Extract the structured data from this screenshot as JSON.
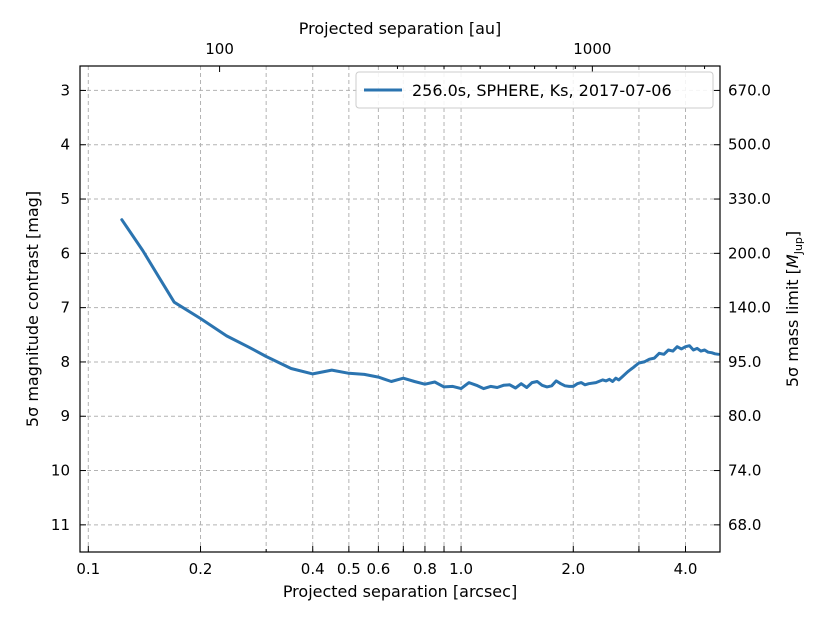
{
  "chart_data": {
    "type": "line",
    "xlabel": "Projected separation [arcsec]",
    "ylabel": "5σ magnitude contrast [mag]",
    "top_xlabel": "Projected separation [au]",
    "right_ylabel_prefix": "5σ mass limit [",
    "right_ylabel_symbol": "M",
    "right_ylabel_sub": "Jup",
    "right_ylabel_suffix": "]",
    "x_scale": "log",
    "xlim": [
      0.095,
      4.95
    ],
    "ylim": [
      11.5,
      2.55
    ],
    "y_inverted": true,
    "grid": true,
    "legend_position": "top-right",
    "color": "#2b74b0",
    "x_ticks": [
      {
        "value": 0.1,
        "label": "0.1"
      },
      {
        "value": 0.2,
        "label": "0.2"
      },
      {
        "value": 0.4,
        "label": "0.4"
      },
      {
        "value": 0.5,
        "label": "0.5"
      },
      {
        "value": 0.6,
        "label": "0.6"
      },
      {
        "value": 0.7,
        "label": ""
      },
      {
        "value": 0.8,
        "label": "0.8"
      },
      {
        "value": 0.9,
        "label": ""
      },
      {
        "value": 1.0,
        "label": "1.0"
      },
      {
        "value": 2.0,
        "label": "2.0"
      },
      {
        "value": 3.0,
        "label": ""
      },
      {
        "value": 4.0,
        "label": "4.0"
      }
    ],
    "x_minor_grid": [
      0.3
    ],
    "y_ticks": [
      {
        "value": 3,
        "label": "3"
      },
      {
        "value": 4,
        "label": "4"
      },
      {
        "value": 5,
        "label": "5"
      },
      {
        "value": 6,
        "label": "6"
      },
      {
        "value": 7,
        "label": "7"
      },
      {
        "value": 8,
        "label": "8"
      },
      {
        "value": 9,
        "label": "9"
      },
      {
        "value": 10,
        "label": "10"
      },
      {
        "value": 11,
        "label": "11"
      }
    ],
    "top_ticks": [
      {
        "arcsec": 0.225,
        "label": "100"
      },
      {
        "arcsec": 2.25,
        "label": "1000"
      }
    ],
    "right_ticks": [
      {
        "mag": 3,
        "label": "670.0"
      },
      {
        "mag": 4,
        "label": "500.0"
      },
      {
        "mag": 5,
        "label": "330.0"
      },
      {
        "mag": 6,
        "label": "200.0"
      },
      {
        "mag": 7,
        "label": "140.0"
      },
      {
        "mag": 8,
        "label": "95.0"
      },
      {
        "mag": 9,
        "label": "80.0"
      },
      {
        "mag": 10,
        "label": "74.0"
      },
      {
        "mag": 11,
        "label": "68.0"
      }
    ],
    "series": [
      {
        "name": "256.0s, SPHERE, Ks, 2017-07-06",
        "x": [
          0.123,
          0.14,
          0.155,
          0.17,
          0.2,
          0.235,
          0.27,
          0.3,
          0.35,
          0.4,
          0.45,
          0.5,
          0.55,
          0.6,
          0.65,
          0.7,
          0.75,
          0.8,
          0.85,
          0.9,
          0.95,
          1.0,
          1.05,
          1.1,
          1.15,
          1.2,
          1.25,
          1.3,
          1.35,
          1.4,
          1.45,
          1.5,
          1.55,
          1.6,
          1.65,
          1.7,
          1.75,
          1.8,
          1.85,
          1.9,
          1.95,
          2.0,
          2.05,
          2.1,
          2.15,
          2.2,
          2.3,
          2.4,
          2.45,
          2.5,
          2.55,
          2.6,
          2.65,
          2.7,
          2.8,
          2.85,
          2.9,
          3.0,
          3.1,
          3.2,
          3.3,
          3.4,
          3.5,
          3.6,
          3.7,
          3.8,
          3.9,
          4.0,
          4.1,
          4.2,
          4.3,
          4.4,
          4.5,
          4.6,
          4.7,
          4.8,
          4.9
        ],
        "y": [
          5.38,
          5.95,
          6.45,
          6.9,
          7.2,
          7.52,
          7.73,
          7.9,
          8.12,
          8.22,
          8.15,
          8.21,
          8.23,
          8.28,
          8.36,
          8.3,
          8.36,
          8.41,
          8.37,
          8.46,
          8.45,
          8.49,
          8.38,
          8.43,
          8.49,
          8.45,
          8.47,
          8.43,
          8.42,
          8.48,
          8.4,
          8.47,
          8.38,
          8.36,
          8.43,
          8.46,
          8.44,
          8.35,
          8.4,
          8.44,
          8.45,
          8.45,
          8.4,
          8.38,
          8.42,
          8.4,
          8.38,
          8.33,
          8.35,
          8.32,
          8.36,
          8.3,
          8.33,
          8.28,
          8.18,
          8.14,
          8.1,
          8.02,
          8.0,
          7.95,
          7.93,
          7.84,
          7.86,
          7.78,
          7.8,
          7.72,
          7.76,
          7.72,
          7.7,
          7.78,
          7.75,
          7.8,
          7.78,
          7.82,
          7.83,
          7.85,
          7.86
        ]
      }
    ]
  }
}
